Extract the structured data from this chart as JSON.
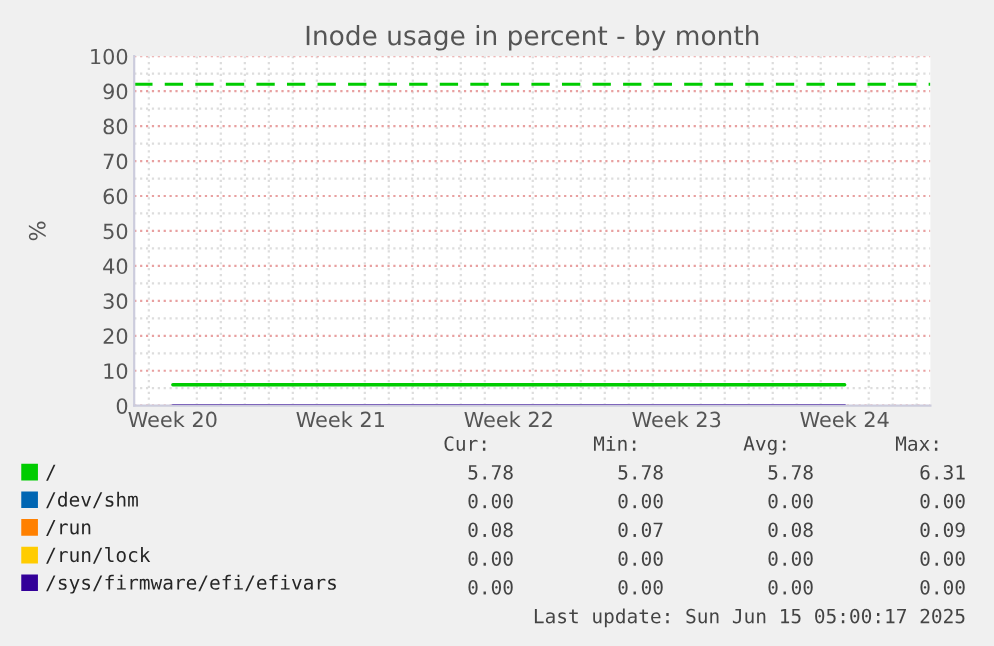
{
  "chart_data": {
    "type": "line",
    "title": "Inode usage in percent - by month",
    "ylabel": "%",
    "categories": [
      "Week 20",
      "Week 21",
      "Week 22",
      "Week 23",
      "Week 24"
    ],
    "ylim": [
      0,
      100
    ],
    "yticks": [
      0,
      10,
      20,
      30,
      40,
      50,
      60,
      70,
      80,
      90,
      100
    ],
    "grid": true,
    "legend": "bottom",
    "marker": "none",
    "line_style": "solid",
    "series": [
      {
        "name": "/",
        "color": "#00cc00",
        "values": [
          6,
          6,
          6,
          6,
          6
        ]
      },
      {
        "name": "/dev/shm",
        "color": "#0066b3",
        "values": [
          null,
          null,
          null,
          null,
          null
        ]
      },
      {
        "name": "/run",
        "color": "#ff8000",
        "values": [
          null,
          null,
          null,
          null,
          null
        ]
      },
      {
        "name": "/run/lock",
        "color": "#ffcc00",
        "values": [
          null,
          null,
          null,
          null,
          null
        ]
      },
      {
        "name": "/sys/firmware/efi/efivars",
        "color": "#330099",
        "values": [
          0,
          0,
          0,
          0,
          0
        ]
      }
    ],
    "ref_lines": [
      {
        "axis": "y",
        "value": 92,
        "color": "#00cc00",
        "line_style": "dashed"
      }
    ],
    "annotations": [
      "Cur:",
      "Min:",
      "Avg:",
      "Max:",
      "5.78",
      "5.78",
      "5.78",
      "6.31",
      "0.00",
      "0.00",
      "0.00",
      "0.00",
      "0.08",
      "0.07",
      "0.08",
      "0.09",
      "0.00",
      "0.00",
      "0.00",
      "0.00",
      "0.00",
      "0.00",
      "0.00",
      "0.00",
      "Last update: Sun Jun 15 05:00:17 2025"
    ]
  }
}
